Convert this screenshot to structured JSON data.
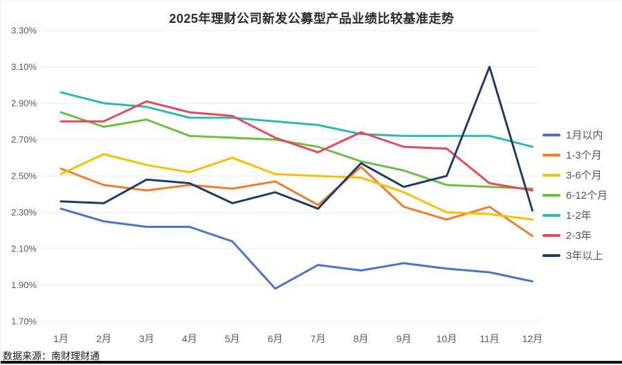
{
  "chart": {
    "title": "2025年理财公司新发公募型产品业绩比较基准走势",
    "source": "数据来源：南财理财通"
  },
  "chart_data": {
    "type": "line",
    "title": "2025年理财公司新发公募型产品业绩比较基准走势",
    "categories": [
      "1月",
      "2月",
      "3月",
      "4月",
      "5月",
      "6月",
      "7月",
      "8月",
      "9月",
      "10月",
      "11月",
      "12月"
    ],
    "y_axis": {
      "min": 1.7,
      "max": 3.3,
      "step": 0.2,
      "tick_values": [
        3.3,
        3.1,
        2.9,
        2.7,
        2.5,
        2.3,
        2.1,
        1.9,
        1.7
      ],
      "tick_labels": [
        "3.30%",
        "3.10%",
        "2.90%",
        "2.70%",
        "2.50%",
        "2.30%",
        "2.10%",
        "1.90%",
        "1.70%"
      ]
    },
    "grid": true,
    "legend_position": "right",
    "series": [
      {
        "name": "1月以内",
        "color": "#4a74c9",
        "values": [
          2.32,
          2.25,
          2.22,
          2.22,
          2.14,
          1.88,
          2.01,
          1.98,
          2.02,
          1.99,
          1.97,
          1.92
        ]
      },
      {
        "name": "1-3个月",
        "color": "#ee7e2e",
        "values": [
          2.54,
          2.45,
          2.42,
          2.45,
          2.43,
          2.47,
          2.34,
          2.55,
          2.33,
          2.26,
          2.33,
          2.17
        ]
      },
      {
        "name": "3-6个月",
        "color": "#fcbe00",
        "values": [
          2.51,
          2.62,
          2.56,
          2.52,
          2.6,
          2.51,
          2.5,
          2.49,
          2.41,
          2.3,
          2.29,
          2.26
        ]
      },
      {
        "name": "6-12个月",
        "color": "#6dbe45",
        "values": [
          2.85,
          2.77,
          2.81,
          2.72,
          2.71,
          2.7,
          2.66,
          2.58,
          2.53,
          2.45,
          2.44,
          2.43
        ]
      },
      {
        "name": "1-2年",
        "color": "#2fb8ac",
        "values": [
          2.96,
          2.9,
          2.88,
          2.82,
          2.82,
          2.8,
          2.78,
          2.73,
          2.72,
          2.72,
          2.72,
          2.66
        ]
      },
      {
        "name": "2-3年",
        "color": "#e5475c",
        "values": [
          2.8,
          2.8,
          2.91,
          2.85,
          2.83,
          2.71,
          2.63,
          2.74,
          2.66,
          2.65,
          2.46,
          2.42
        ]
      },
      {
        "name": "3年以上",
        "color": "#1e3b66",
        "values": [
          2.36,
          2.35,
          2.48,
          2.46,
          2.35,
          2.41,
          2.32,
          2.57,
          2.44,
          2.5,
          3.1,
          2.31
        ]
      }
    ]
  }
}
